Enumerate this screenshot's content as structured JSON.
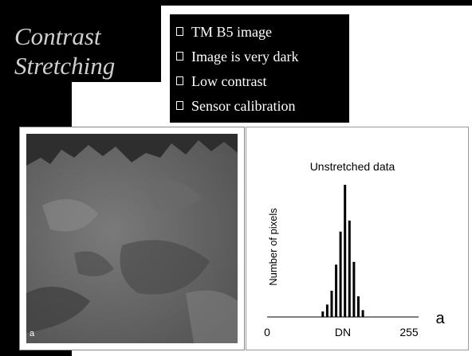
{
  "slide": {
    "title_lines": [
      "Contrast",
      "Stretching"
    ],
    "bullets": [
      "TM B5 image",
      "Image is very dark",
      "Low contrast",
      "Sensor calibration"
    ],
    "bullet_icon": "square-bullet-icon"
  },
  "photo": {
    "panel_label": "a",
    "description_icon": "satellite-image"
  },
  "chart_data": {
    "type": "bar",
    "title": "Unstretched data",
    "xlabel": "DN",
    "ylabel": "Number of pixels",
    "xlim": [
      0,
      255
    ],
    "x_ticks": [
      "0",
      "255"
    ],
    "panel_label": "a",
    "series": [
      {
        "x": [
          100,
          108,
          116,
          124,
          132,
          140,
          148,
          156,
          164,
          172
        ],
        "values": [
          4,
          9,
          19,
          38,
          62,
          96,
          70,
          40,
          15,
          5
        ]
      }
    ],
    "grid": false
  }
}
